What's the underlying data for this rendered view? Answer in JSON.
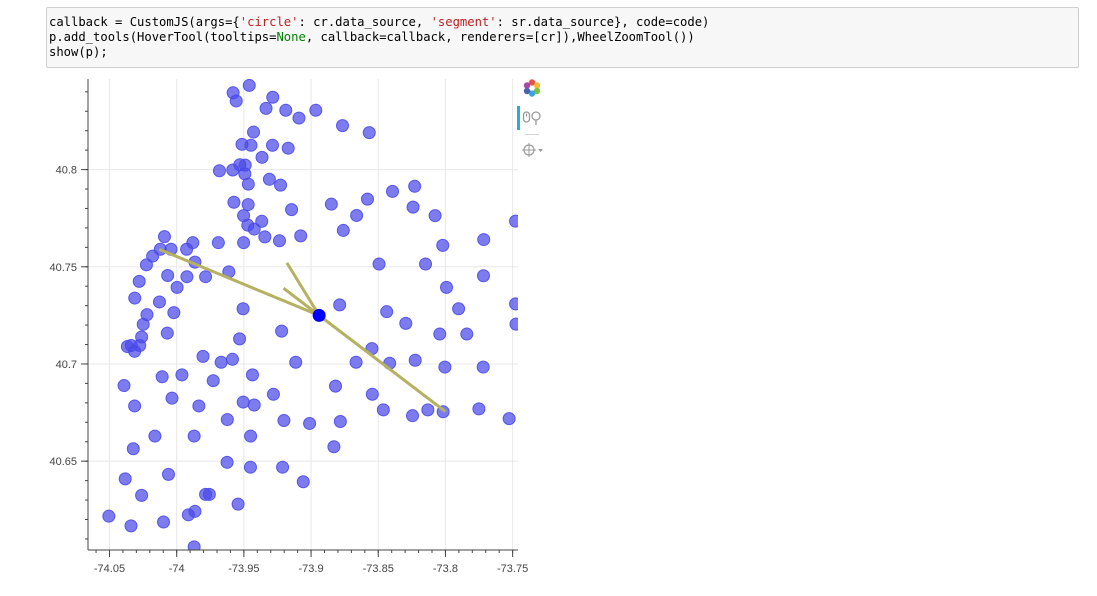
{
  "code": {
    "line1": {
      "a": "callback = CustomJS(args={",
      "b": "'circle'",
      "c": ": cr.data_source, ",
      "d": "'segment'",
      "e": ": sr.data_source}, code=code)"
    },
    "line2": {
      "a": "p.add_tools(HoverTool(tooltips=",
      "b": "None",
      "c": ", callback=callback, renderers=[cr]),WheelZoomTool())"
    },
    "line3": "show(p);"
  },
  "toolbar": {
    "logo_icon": "bokeh-logo-icon",
    "tools": [
      "wheel-zoom-icon",
      "hover-crosshair-icon"
    ]
  },
  "colors": {
    "points": "#4a4ae8",
    "highlight": "#0000ff",
    "segment": "#b5b160",
    "grid": "#e8e8e8",
    "axis": "#444444"
  },
  "chart_data": {
    "type": "scatter",
    "title": "",
    "xlabel": "",
    "ylabel": "",
    "xlim": [
      -74.066,
      -73.746
    ],
    "ylim": [
      40.6043,
      40.8466
    ],
    "x_ticks": [
      -74.05,
      -74,
      -73.95,
      -73.9,
      -73.85,
      -73.8,
      -73.75
    ],
    "x_tick_labels": [
      "-74.05",
      "-74",
      "-73.95",
      "-73.9",
      "-73.85",
      "-73.8",
      "-73.75"
    ],
    "y_ticks": [
      40.65,
      40.7,
      40.75,
      40.8
    ],
    "y_tick_labels": [
      "40.65",
      "40.7",
      "40.75",
      "40.8"
    ],
    "grid": true,
    "points": [
      [
        -73.96,
        40.839
      ],
      [
        -73.945,
        40.845
      ],
      [
        -73.94,
        40.838
      ],
      [
        -73.895,
        40.847
      ],
      [
        -73.878,
        40.843
      ],
      [
        -73.955,
        40.831
      ],
      [
        -73.923,
        40.83
      ],
      [
        -73.933,
        40.826
      ],
      [
        -73.945,
        40.823
      ],
      [
        -73.925,
        40.82
      ],
      [
        -73.945,
        40.816
      ],
      [
        -73.928,
        40.812
      ],
      [
        -73.928,
        40.812
      ],
      [
        -73.911,
        40.839
      ],
      [
        -73.895,
        40.833
      ],
      [
        -73.884,
        40.824
      ],
      [
        -73.86,
        40.826
      ],
      [
        -73.876,
        40.816
      ],
      [
        -73.916,
        40.813
      ],
      [
        -73.926,
        40.806
      ],
      [
        -73.921,
        40.8
      ],
      [
        -73.958,
        40.84
      ],
      [
        -73.938,
        40.832
      ],
      [
        -73.91,
        40.829
      ],
      [
        -73.877,
        40.826
      ],
      [
        -73.878,
        40.81
      ],
      [
        -73.889,
        40.811
      ],
      [
        -73.914,
        40.81
      ],
      [
        -73.95,
        40.799
      ],
      [
        -73.956,
        40.799
      ],
      [
        -73.962,
        40.803
      ],
      [
        -73.974,
        40.8
      ],
      [
        -73.96,
        40.792
      ],
      [
        -73.948,
        40.796
      ],
      [
        -73.925,
        40.796
      ],
      [
        -73.87,
        40.806
      ],
      [
        -73.893,
        40.804
      ],
      [
        -73.79,
        40.786
      ],
      [
        -73.838,
        40.785
      ],
      [
        -73.758,
        40.787
      ],
      [
        -73.857,
        40.796
      ],
      [
        -73.852,
        40.823
      ],
      [
        -73.813,
        40.821
      ],
      [
        -73.846,
        40.813
      ]
    ],
    "points_b": [
      [
        -73.958,
        40.843
      ],
      [
        -73.947,
        40.84
      ],
      [
        -73.93,
        40.837
      ],
      [
        -73.9,
        40.839
      ],
      [
        -73.9,
        40.832
      ],
      [
        -73.955,
        40.828
      ],
      [
        -73.951,
        40.825
      ],
      [
        -73.931,
        40.821
      ],
      [
        -73.945,
        40.817
      ],
      [
        -73.935,
        40.812
      ],
      [
        -73.921,
        40.807
      ],
      [
        -73.868,
        40.816
      ],
      [
        -73.835,
        40.816
      ],
      [
        -73.887,
        40.805
      ],
      [
        -73.957,
        40.802
      ],
      [
        -73.95,
        40.799
      ],
      [
        -73.944,
        40.796
      ],
      [
        -73.942,
        40.791
      ],
      [
        -73.934,
        40.787
      ],
      [
        -73.948,
        40.782
      ],
      [
        -73.919,
        40.78
      ],
      [
        -73.903,
        40.779
      ],
      [
        -73.859,
        40.783
      ],
      [
        -73.822,
        40.786
      ],
      [
        -73.789,
        40.785
      ],
      [
        -73.763,
        40.783
      ],
      [
        -73.824,
        40.778
      ]
    ],
    "all_points": [
      [
        -73.947,
        40.838
      ],
      [
        -73.944,
        40.836
      ],
      [
        -73.925,
        40.836
      ],
      [
        -73.895,
        40.838
      ],
      [
        -73.865,
        40.836
      ],
      [
        -73.932,
        40.829
      ],
      [
        -73.926,
        40.829
      ],
      [
        -73.891,
        40.829
      ],
      [
        -73.908,
        40.827
      ],
      [
        -73.847,
        40.829
      ],
      [
        -73.956,
        40.826
      ],
      [
        -73.917,
        40.826
      ],
      [
        -73.943,
        40.818
      ],
      [
        -73.932,
        40.82
      ],
      [
        -73.926,
        40.818
      ],
      [
        -73.903,
        40.818
      ],
      [
        -73.873,
        40.823
      ],
      [
        -73.879,
        40.819
      ],
      [
        -73.951,
        40.813
      ],
      [
        -73.946,
        40.807
      ],
      [
        -73.943,
        40.803
      ],
      [
        -73.91,
        40.811
      ],
      [
        -73.905,
        40.806
      ],
      [
        -73.925,
        40.8
      ],
      [
        -73.947,
        40.799
      ],
      [
        -73.951,
        40.799
      ],
      [
        -73.954,
        40.793
      ],
      [
        -73.962,
        40.792
      ],
      [
        -73.948,
        40.789
      ],
      [
        -73.885,
        40.789
      ],
      [
        -73.866,
        40.792
      ],
      [
        -73.87,
        40.787
      ],
      [
        -73.841,
        40.791
      ],
      [
        -73.956,
        40.787
      ],
      [
        -73.953,
        40.782
      ],
      [
        -73.943,
        40.782
      ],
      [
        -73.93,
        40.784
      ],
      [
        -73.91,
        40.784
      ],
      [
        -73.88,
        40.784
      ],
      [
        -73.822,
        40.787
      ],
      [
        -73.805,
        40.78
      ],
      [
        -73.817,
        40.776
      ]
    ],
    "scatter_points": [
      [
        -73.947,
        40.839
      ],
      [
        -73.932,
        40.838
      ],
      [
        -73.924,
        40.835
      ],
      [
        -73.958,
        40.831
      ],
      [
        -73.939,
        40.831
      ],
      [
        -73.917,
        40.83
      ],
      [
        -73.93,
        40.829
      ],
      [
        -73.908,
        40.826
      ],
      [
        -73.878,
        40.823
      ],
      [
        -73.857,
        40.821
      ],
      [
        -73.943,
        40.822
      ],
      [
        -73.928,
        40.818
      ],
      [
        -73.944,
        40.818
      ],
      [
        -73.933,
        40.813
      ],
      [
        -73.916,
        40.812
      ],
      [
        -73.948,
        40.812
      ],
      [
        -73.938,
        40.806
      ],
      [
        -73.945,
        40.803
      ],
      [
        -73.966,
        40.8
      ],
      [
        -73.955,
        40.801
      ],
      [
        -73.87,
        40.816
      ],
      [
        -73.941,
        40.793
      ],
      [
        -73.928,
        40.796
      ],
      [
        -73.889,
        40.787
      ],
      [
        -73.857,
        40.785
      ],
      [
        -73.823,
        40.792
      ],
      [
        -73.826,
        40.781
      ],
      [
        -73.812,
        40.777
      ]
    ],
    "markers": [
      [
        -73.958,
        40.839
      ],
      [
        -73.939,
        40.838
      ],
      [
        -73.895,
        40.847
      ],
      [
        -73.877,
        40.843
      ],
      [
        -73.955,
        40.831
      ],
      [
        -73.944,
        40.832
      ],
      [
        -73.928,
        40.83
      ],
      [
        -73.908,
        40.826
      ],
      [
        -73.944,
        40.826
      ],
      [
        -73.951,
        40.82
      ],
      [
        -73.941,
        40.819
      ],
      [
        -73.926,
        40.822
      ],
      [
        -73.875,
        40.822
      ],
      [
        -73.857,
        40.827
      ],
      [
        -73.949,
        40.817
      ],
      [
        -73.948,
        40.813
      ],
      [
        -73.916,
        40.811
      ],
      [
        -73.933,
        40.814
      ],
      [
        -73.925,
        40.806
      ],
      [
        -73.9,
        40.83
      ],
      [
        -73.9,
        40.84
      ]
    ],
    "series": [
      {
        "name": "",
        "points": [
          [
            -73.9588,
            40.844
          ],
          [
            -73.9407,
            40.8435
          ],
          [
            -73.9182,
            40.8473
          ],
          [
            -73.8955,
            40.846
          ],
          [
            -73.9557,
            40.8364
          ],
          [
            -73.9353,
            40.8346
          ],
          [
            -73.9191,
            40.834
          ],
          [
            -73.9077,
            40.8294
          ],
          [
            -73.8764,
            40.8237
          ],
          [
            -73.8575,
            40.8204
          ],
          [
            -73.9503,
            40.8281
          ],
          [
            -73.9307,
            40.8285
          ],
          [
            -73.9233,
            40.8259
          ],
          [
            -73.9442,
            40.8198
          ],
          [
            -73.9253,
            40.8168
          ],
          [
            -73.9054,
            40.8148
          ],
          [
            -73.9464,
            40.8132
          ],
          [
            -73.9349,
            40.8103
          ],
          [
            -73.9169,
            40.8101
          ],
          [
            -73.8976,
            40.8058
          ],
          [
            -73.9501,
            40.8026
          ],
          [
            -73.9472,
            40.7985
          ],
          [
            -73.9579,
            40.7985
          ],
          [
            -73.9614,
            40.7966
          ],
          [
            -73.9287,
            40.7951
          ],
          [
            -73.9557,
            40.7922
          ],
          [
            -73.9675,
            40.7921
          ],
          [
            -73.9466,
            40.7873
          ],
          [
            -73.9415,
            40.7843
          ],
          [
            -73.8846,
            40.7843
          ],
          [
            -73.8563,
            40.787
          ],
          [
            -73.8397,
            40.7915
          ],
          [
            -73.8243,
            40.7837
          ],
          [
            -73.8081,
            40.7763
          ],
          [
            -73.8677,
            40.7798
          ]
        ]
      }
    ],
    "dots": [
      [
        -73.9588,
        40.844
      ],
      [
        -73.9407,
        40.8435
      ],
      [
        -73.9182,
        40.8473
      ],
      [
        -73.8955,
        40.846
      ],
      [
        -73.9557,
        40.8364
      ],
      [
        -73.9353,
        40.8346
      ],
      [
        -73.9191,
        40.834
      ],
      [
        -73.9077,
        40.8294
      ],
      [
        -73.8764,
        40.8237
      ],
      [
        -73.8575,
        40.8204
      ],
      [
        -73.9503,
        40.8281
      ],
      [
        -73.9307,
        40.8285
      ],
      [
        -73.9233,
        40.8259
      ],
      [
        -73.9442,
        40.8198
      ],
      [
        -73.9253,
        40.8168
      ],
      [
        -73.9054,
        40.8148
      ],
      [
        -73.9464,
        40.8132
      ],
      [
        -73.9349,
        40.8103
      ],
      [
        -73.9169,
        40.8101
      ],
      [
        -73.8976,
        40.8058
      ],
      [
        -73.9501,
        40.8026
      ],
      [
        -73.9472,
        40.7985
      ],
      [
        -73.9579,
        40.7985
      ],
      [
        -73.9614,
        40.7966
      ],
      [
        -73.9287,
        40.7951
      ],
      [
        -73.9557,
        40.7922
      ],
      [
        -73.9675,
        40.7921
      ],
      [
        -73.9466,
        40.7873
      ],
      [
        -73.9415,
        40.7843
      ],
      [
        -73.8846,
        40.7843
      ],
      [
        -73.8563,
        40.787
      ],
      [
        -73.8397,
        40.7915
      ],
      [
        -73.8243,
        40.7837
      ],
      [
        -73.8081,
        40.7763
      ],
      [
        -73.8677,
        40.7798
      ]
    ],
    "scatter": [
      [
        -73.958,
        40.8395
      ],
      [
        -73.9446,
        40.8381
      ],
      [
        -73.9241,
        40.835
      ],
      [
        -73.9064,
        40.8262
      ],
      [
        -73.9318,
        40.83
      ],
      [
        -73.946,
        40.8263
      ],
      [
        -73.9273,
        40.821
      ],
      [
        -73.917,
        40.811
      ],
      [
        -73.9486,
        40.813
      ],
      [
        -73.9384,
        40.8061
      ],
      [
        -73.953,
        40.8002
      ],
      [
        -73.9582,
        40.7998
      ],
      [
        -73.9447,
        40.7939
      ],
      [
        -73.8848,
        40.7822
      ],
      [
        -73.868,
        40.785
      ],
      [
        -73.8378,
        40.79
      ],
      [
        -73.823,
        40.7818
      ],
      [
        -73.8077,
        40.7763
      ],
      [
        -73.8594,
        40.8257
      ],
      [
        -73.8787,
        40.8225
      ],
      [
        -73.9128,
        40.8264
      ],
      [
        -73.9221,
        40.8294
      ]
    ],
    "circles": [
      [
        -73.96,
        40.839
      ],
      [
        -73.944,
        40.838
      ],
      [
        -73.929,
        40.839
      ],
      [
        -73.9,
        40.836
      ],
      [
        -73.955,
        40.826
      ],
      [
        -73.951,
        40.819
      ],
      [
        -73.941,
        40.823
      ],
      [
        -73.925,
        40.818
      ],
      [
        -73.912,
        40.811
      ],
      [
        -73.892,
        40.805
      ],
      [
        -73.876,
        40.822
      ],
      [
        -73.857,
        40.82
      ],
      [
        -73.949,
        40.813
      ],
      [
        -73.935,
        40.812
      ],
      [
        -73.945,
        40.803
      ],
      [
        -73.948,
        40.799
      ],
      [
        -73.96,
        40.799
      ],
      [
        -73.942,
        40.789
      ],
      [
        -73.926,
        40.794
      ],
      [
        -73.885,
        40.784
      ],
      [
        -73.868,
        40.787
      ],
      [
        -73.838,
        40.791
      ],
      [
        -73.822,
        40.781
      ],
      [
        -73.809,
        40.776
      ]
    ],
    "highlight_point": [
      -73.894,
      40.725
    ],
    "segments": [
      [
        [
          -73.894,
          40.725
        ],
        [
          -74.013,
          40.759
        ]
      ],
      [
        [
          -73.894,
          40.725
        ],
        [
          -73.918,
          40.752
        ]
      ],
      [
        [
          -73.894,
          40.725
        ],
        [
          -73.9205,
          40.739
        ]
      ],
      [
        [
          -73.894,
          40.725
        ],
        [
          -73.8,
          40.6755
        ]
      ]
    ]
  }
}
